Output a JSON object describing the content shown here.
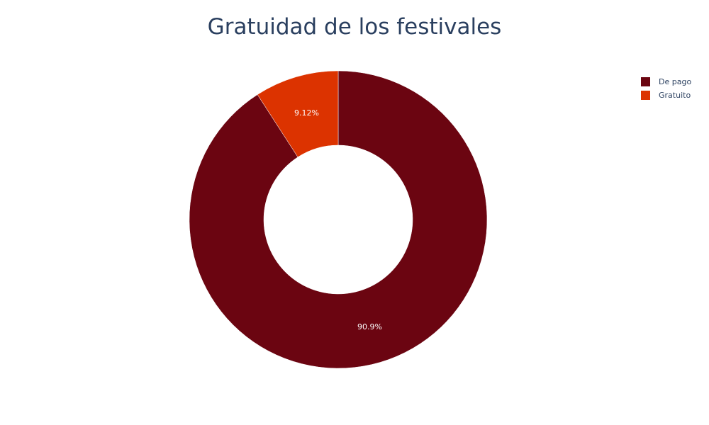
{
  "chart_data": {
    "type": "pie",
    "title": "Gratuidad de los festivales",
    "hole": 0.5,
    "categories": [
      "De pago",
      "Gratuito"
    ],
    "values": [
      90.88,
      9.12
    ],
    "percent_labels": [
      "90.9%",
      "9.12%"
    ],
    "colors": [
      "#6b0511",
      "#dc3300"
    ],
    "legend": {
      "position": "top-right",
      "entries": [
        "De pago",
        "Gratuito"
      ]
    }
  }
}
